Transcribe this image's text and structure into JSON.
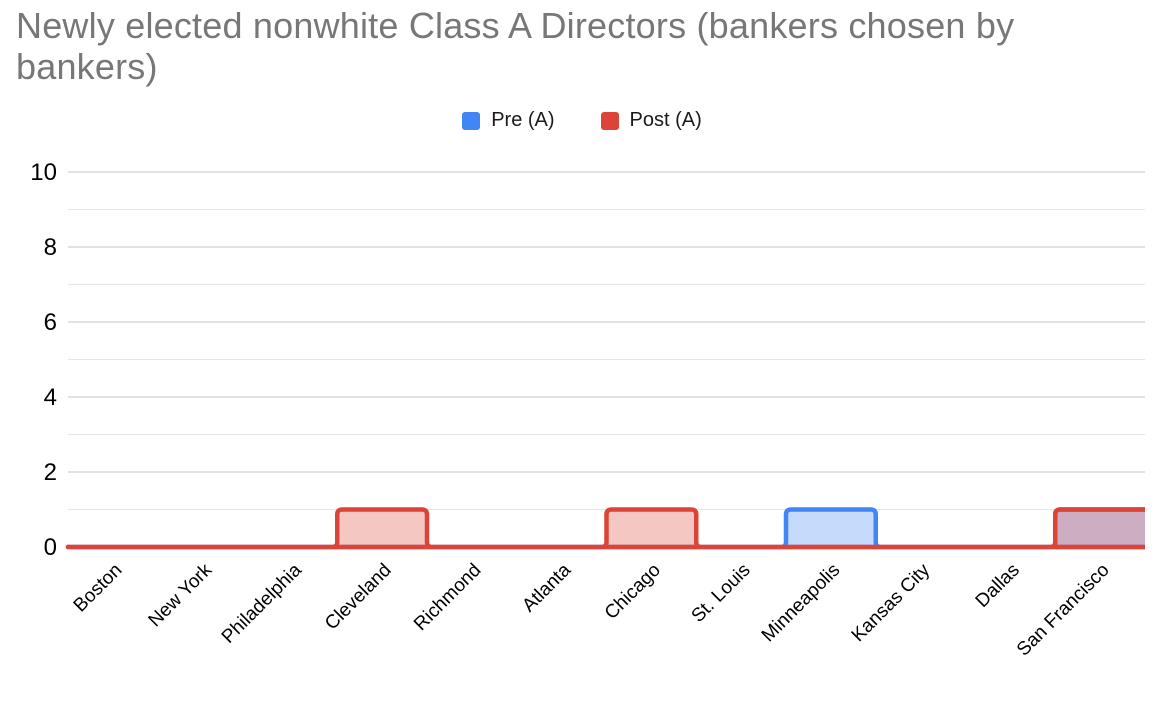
{
  "chart_data": {
    "type": "stepped-area",
    "title": "Newly elected nonwhite Class A Directors (bankers chosen by bankers)",
    "title_color": "#777777",
    "categories": [
      "Boston",
      "New York",
      "Philadelphia",
      "Cleveland",
      "Richmond",
      "Atlanta",
      "Chicago",
      "St. Louis",
      "Minneapolis",
      "Kansas City",
      "Dallas",
      "San Francisco"
    ],
    "series": [
      {
        "name": "Pre (A)",
        "color": "#4285F4",
        "values": [
          0,
          0,
          0,
          0,
          0,
          0,
          0,
          0,
          1,
          0,
          0,
          1
        ]
      },
      {
        "name": "Post (A)",
        "color": "#DB4437",
        "values": [
          0,
          0,
          0,
          1,
          0,
          0,
          1,
          0,
          0,
          0,
          0,
          1
        ]
      }
    ],
    "xlabel": "",
    "ylabel": "",
    "ylim": [
      0,
      10
    ],
    "yticks": [
      0,
      2,
      4,
      6,
      8,
      10
    ],
    "minor_gridline_step": 1,
    "fill_opacity": 0.3,
    "stroke_width": 4.5,
    "legend_position": "top-center",
    "grid": {
      "on": true,
      "major_color": "#C6C6C6",
      "minor_color": "#E6E6E6",
      "baseline_color": "#333333"
    }
  }
}
